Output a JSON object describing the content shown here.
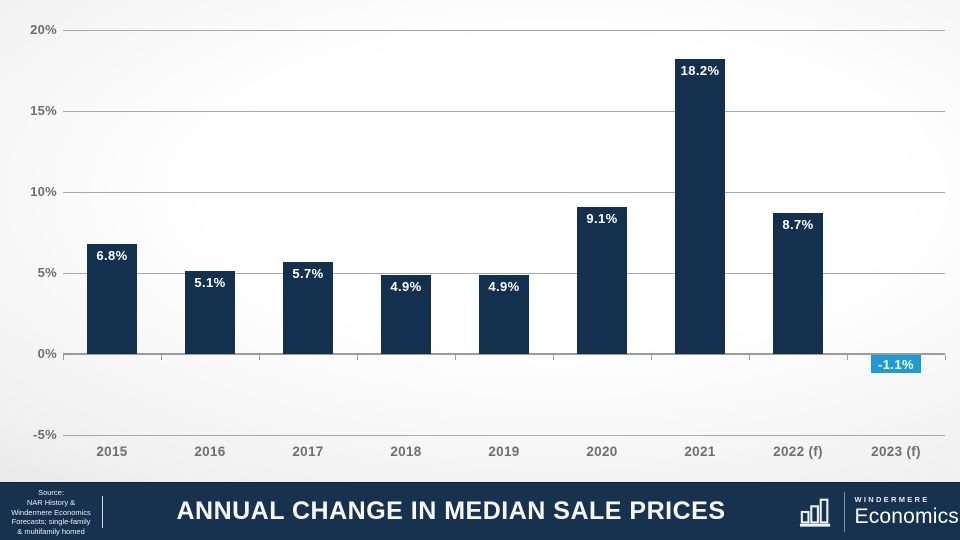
{
  "chart_data": {
    "type": "bar",
    "title": "ANNUAL CHANGE IN MEDIAN SALE PRICES",
    "categories": [
      "2015",
      "2016",
      "2017",
      "2018",
      "2019",
      "2020",
      "2021",
      "2022 (f)",
      "2023 (f)"
    ],
    "values": [
      6.8,
      5.1,
      5.7,
      4.9,
      4.9,
      9.1,
      18.2,
      8.7,
      -1.1
    ],
    "bar_labels": [
      "6.8%",
      "5.1%",
      "5.7%",
      "4.9%",
      "4.9%",
      "9.1%",
      "18.2%",
      "8.7%",
      "-1.1%"
    ],
    "xlabel": "",
    "ylabel": "",
    "ylim": [
      -5,
      20
    ],
    "ytick_values": [
      20,
      15,
      10,
      5,
      0,
      -5
    ],
    "ytick_labels": [
      "20%",
      "15%",
      "10%",
      "5%",
      "0%",
      "-5%"
    ],
    "grid": true,
    "legend": false,
    "colors": {
      "bar": "#13304f",
      "forecast_negative_bar": "#1e9ad6",
      "gridline": "#a9a9a9",
      "axis_text": "#6f6f6f",
      "bar_label_text": "#ffffff"
    }
  },
  "footer": {
    "title": "ANNUAL CHANGE IN MEDIAN SALE PRICES",
    "source": [
      "Source:",
      "NAR History &",
      "Windermere Economics",
      "Forecasts; single-family",
      "& multifamily homed"
    ],
    "logo": {
      "icon": "bar-chart-icon",
      "brand": "WINDERMERE",
      "division": "Economics"
    },
    "colors": {
      "background": "#16324f",
      "text": "#ffffff"
    }
  }
}
